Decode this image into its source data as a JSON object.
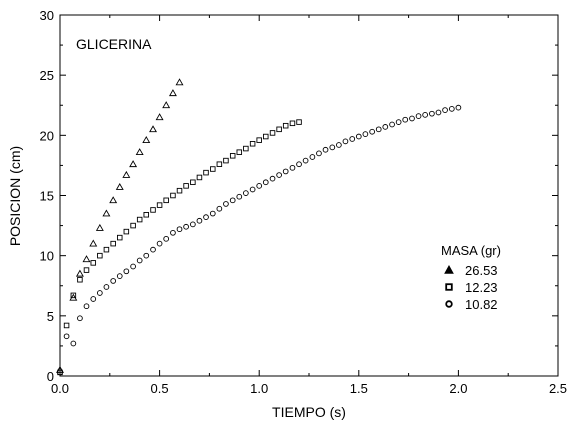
{
  "chart_data": {
    "type": "scatter",
    "annotation": "GLICERINA",
    "xlabel": "TIEMPO (s)",
    "ylabel": "POSICION (cm)",
    "xlim": [
      0,
      2.5
    ],
    "ylim": [
      0,
      30
    ],
    "xticks": [
      "0.0",
      "0.5",
      "1.0",
      "1.5",
      "2.0",
      "2.5"
    ],
    "yticks": [
      "0",
      "5",
      "10",
      "15",
      "20",
      "25",
      "30"
    ],
    "legend_title": "MASA (gr)",
    "legend_position": "right",
    "series": [
      {
        "name": "26.53",
        "marker": "triangle",
        "x": [
          0.0,
          0.067,
          0.1,
          0.133,
          0.167,
          0.2,
          0.233,
          0.267,
          0.3,
          0.333,
          0.367,
          0.4,
          0.433,
          0.467,
          0.5,
          0.533,
          0.567,
          0.6
        ],
        "y": [
          0.5,
          6.5,
          8.5,
          9.7,
          11.0,
          12.3,
          13.5,
          14.6,
          15.7,
          16.7,
          17.6,
          18.6,
          19.6,
          20.5,
          21.5,
          22.5,
          23.5,
          24.4
        ]
      },
      {
        "name": "12.23",
        "marker": "square",
        "x": [
          0.0,
          0.033,
          0.067,
          0.1,
          0.133,
          0.167,
          0.2,
          0.233,
          0.267,
          0.3,
          0.333,
          0.367,
          0.4,
          0.433,
          0.467,
          0.5,
          0.533,
          0.567,
          0.6,
          0.633,
          0.667,
          0.7,
          0.733,
          0.767,
          0.8,
          0.833,
          0.867,
          0.9,
          0.933,
          0.967,
          1.0,
          1.033,
          1.067,
          1.1,
          1.133,
          1.167,
          1.2
        ],
        "y": [
          0.3,
          4.2,
          6.7,
          8.0,
          8.8,
          9.4,
          10.0,
          10.5,
          11.0,
          11.5,
          12.0,
          12.5,
          13.0,
          13.4,
          13.8,
          14.2,
          14.6,
          15.0,
          15.4,
          15.8,
          16.1,
          16.5,
          16.9,
          17.2,
          17.6,
          17.9,
          18.3,
          18.6,
          18.9,
          19.3,
          19.6,
          19.9,
          20.2,
          20.5,
          20.8,
          21.0,
          21.1
        ]
      },
      {
        "name": "10.82",
        "marker": "circle",
        "x": [
          0.0,
          0.033,
          0.067,
          0.1,
          0.133,
          0.167,
          0.2,
          0.233,
          0.267,
          0.3,
          0.333,
          0.367,
          0.4,
          0.433,
          0.467,
          0.5,
          0.533,
          0.567,
          0.6,
          0.633,
          0.667,
          0.7,
          0.733,
          0.767,
          0.8,
          0.833,
          0.867,
          0.9,
          0.933,
          0.967,
          1.0,
          1.033,
          1.067,
          1.1,
          1.133,
          1.167,
          1.2,
          1.233,
          1.267,
          1.3,
          1.333,
          1.367,
          1.4,
          1.433,
          1.467,
          1.5,
          1.533,
          1.567,
          1.6,
          1.633,
          1.667,
          1.7,
          1.733,
          1.767,
          1.8,
          1.833,
          1.867,
          1.9,
          1.933,
          1.967,
          2.0
        ],
        "y": [
          0.3,
          3.3,
          2.7,
          4.8,
          5.8,
          6.4,
          6.9,
          7.4,
          7.9,
          8.3,
          8.7,
          9.1,
          9.6,
          10.0,
          10.5,
          11.0,
          11.4,
          11.9,
          12.2,
          12.4,
          12.6,
          12.9,
          13.2,
          13.5,
          13.9,
          14.3,
          14.6,
          14.9,
          15.2,
          15.5,
          15.8,
          16.1,
          16.4,
          16.7,
          17.0,
          17.3,
          17.6,
          17.9,
          18.2,
          18.5,
          18.8,
          19.0,
          19.2,
          19.5,
          19.7,
          19.9,
          20.1,
          20.3,
          20.5,
          20.7,
          20.9,
          21.1,
          21.3,
          21.4,
          21.6,
          21.7,
          21.8,
          21.9,
          22.1,
          22.2,
          22.3
        ]
      }
    ]
  }
}
